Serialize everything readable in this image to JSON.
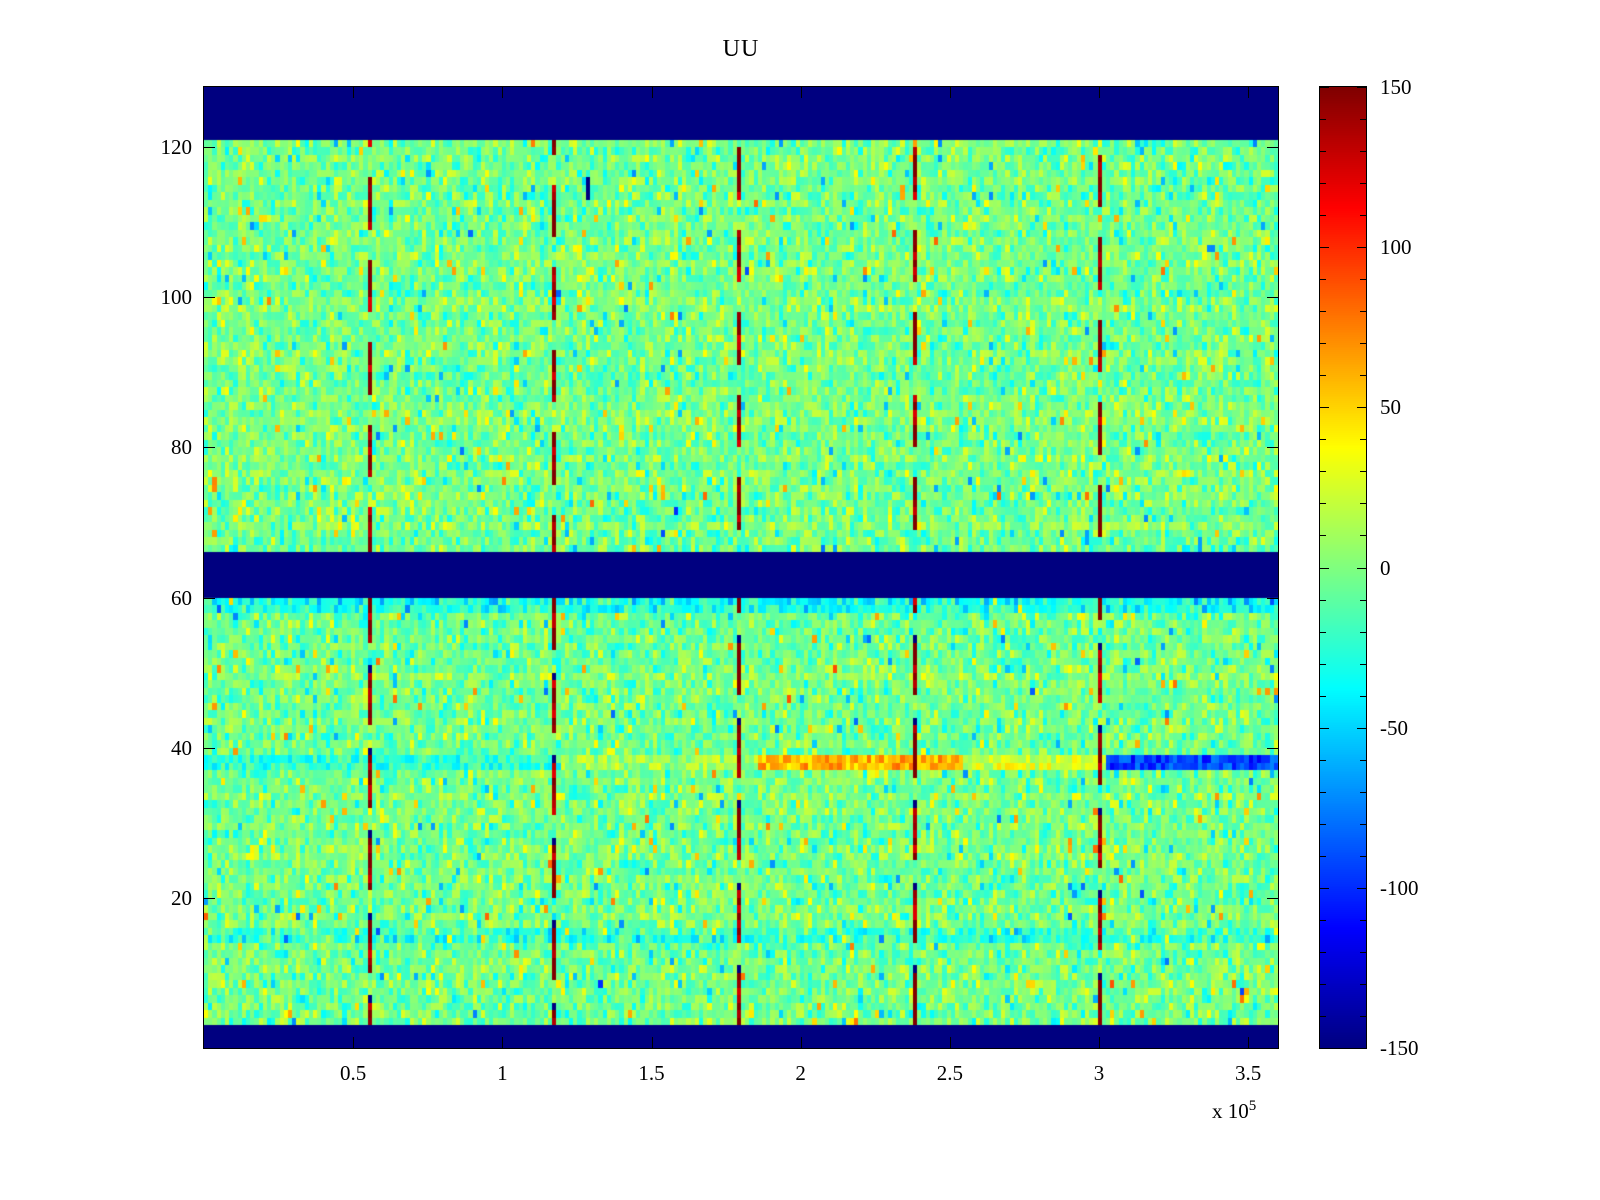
{
  "chart_data": {
    "type": "heatmap",
    "title": "UU",
    "colormap": "jet",
    "x_axis": {
      "range": [
        0,
        360000
      ],
      "tick_values": [
        50000,
        100000,
        150000,
        200000,
        250000,
        300000,
        350000
      ],
      "tick_labels": [
        "0.5",
        "1",
        "1.5",
        "2",
        "2.5",
        "3",
        "3.5"
      ],
      "multiplier_base": "x 10",
      "multiplier_exp": "5"
    },
    "y_axis": {
      "range": [
        0,
        128
      ],
      "tick_values": [
        20,
        40,
        60,
        80,
        100,
        120
      ],
      "tick_labels": [
        "20",
        "40",
        "60",
        "80",
        "100",
        "120"
      ]
    },
    "colorbar": {
      "range": [
        -150,
        150
      ],
      "tick_values": [
        150,
        100,
        50,
        0,
        -50,
        -100,
        -150
      ],
      "tick_labels": [
        "150",
        "100",
        "50",
        "0",
        "-50",
        "-100",
        "-150"
      ]
    },
    "grid": {
      "rows": 128,
      "cols": 256
    },
    "noise": {
      "mean": -3,
      "std": 15,
      "seed": 1337
    },
    "features": {
      "band_value": -150,
      "blue_band_row_ranges": [
        [
          1,
          3
        ],
        [
          61,
          66
        ],
        [
          122,
          128
        ]
      ],
      "vertical_line_x_values": [
        55000,
        117000,
        178000,
        238000,
        300000
      ],
      "vertical_line_value": 150,
      "cyan_row_offsets": [
        {
          "rows": [
            15,
            16
          ],
          "offset": -18
        },
        {
          "rows": [
            59,
            60
          ],
          "offset": -26
        }
      ],
      "horizontal_streak": {
        "rows": [
          38,
          39
        ],
        "segments": [
          {
            "x_range": [
              0,
              120000
            ],
            "value": -25
          },
          {
            "x_range": [
              120000,
              185000
            ],
            "value": 10
          },
          {
            "x_range": [
              185000,
              255000
            ],
            "value": 60
          },
          {
            "x_range": [
              255000,
              302000
            ],
            "value": 25
          },
          {
            "x_range": [
              302000,
              360000
            ],
            "value": -95
          }
        ]
      },
      "blip": {
        "x_value": 128000,
        "rows": [
          114,
          116
        ],
        "value": -150
      }
    }
  }
}
